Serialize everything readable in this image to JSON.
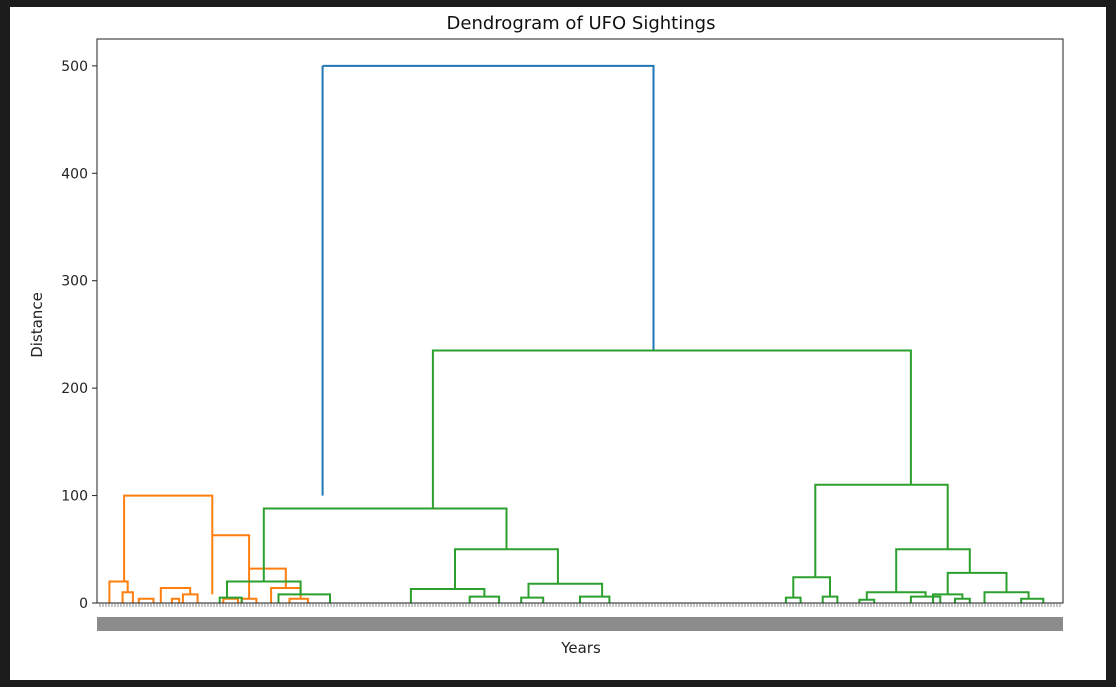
{
  "chart_data": {
    "type": "dendrogram",
    "title": "Dendrogram of UFO Sightings",
    "xlabel": "Years",
    "ylabel": "Distance",
    "ylim": [
      0,
      525
    ],
    "yticks": [
      0,
      100,
      200,
      300,
      400,
      500
    ],
    "colors": {
      "orange": "#ff7f0e",
      "green": "#2ca02c",
      "blue": "#1f77b4"
    },
    "links": [
      {
        "x": [
          30,
          30,
          75,
          75
        ],
        "y": [
          500,
          500,
          500,
          235
        ],
        "color": "blue"
      },
      {
        "x": [
          30,
          30
        ],
        "y": [
          100,
          500
        ],
        "color": "blue"
      },
      {
        "x": [
          3,
          3,
          15,
          15
        ],
        "y": [
          20,
          100,
          100,
          63
        ],
        "color": "orange"
      },
      {
        "x": [
          15,
          15,
          20,
          20
        ],
        "y": [
          8,
          63,
          63,
          32
        ],
        "color": "orange"
      },
      {
        "x": [
          20,
          20,
          25,
          25
        ],
        "y": [
          4,
          32,
          32,
          14
        ],
        "color": "orange"
      },
      {
        "x": [
          1,
          1,
          3.5,
          3.5
        ],
        "y": [
          0,
          20,
          20,
          10
        ],
        "color": "orange"
      },
      {
        "x": [
          2.8,
          2.8,
          4.2,
          4.2
        ],
        "y": [
          0,
          10,
          10,
          0
        ],
        "color": "orange"
      },
      {
        "x": [
          5,
          5,
          7,
          7
        ],
        "y": [
          0,
          4,
          4,
          0
        ],
        "color": "orange"
      },
      {
        "x": [
          8,
          8,
          12,
          12
        ],
        "y": [
          0,
          14,
          14,
          8
        ],
        "color": "orange"
      },
      {
        "x": [
          9.5,
          9.5,
          10.5,
          10.5
        ],
        "y": [
          0,
          4,
          4,
          0
        ],
        "color": "orange"
      },
      {
        "x": [
          11,
          11,
          13,
          13
        ],
        "y": [
          0,
          8,
          8,
          0
        ],
        "color": "orange"
      },
      {
        "x": [
          16.5,
          16.5,
          18.5,
          18.5
        ],
        "y": [
          0,
          4,
          4,
          0
        ],
        "color": "orange"
      },
      {
        "x": [
          19,
          19,
          21,
          21
        ],
        "y": [
          0,
          4,
          4,
          0
        ],
        "color": "orange"
      },
      {
        "x": [
          23,
          23,
          27,
          27
        ],
        "y": [
          0,
          14,
          14,
          4
        ],
        "color": "orange"
      },
      {
        "x": [
          25.5,
          25.5,
          28,
          28
        ],
        "y": [
          0,
          4,
          4,
          0
        ],
        "color": "orange"
      },
      {
        "x": [
          45,
          45,
          110,
          110
        ],
        "y": [
          88,
          235,
          235,
          110
        ],
        "color": "green"
      },
      {
        "x": [
          22,
          22,
          55,
          55
        ],
        "y": [
          20,
          88,
          88,
          50
        ],
        "color": "green"
      },
      {
        "x": [
          17,
          17,
          27,
          27
        ],
        "y": [
          5,
          20,
          20,
          8
        ],
        "color": "green"
      },
      {
        "x": [
          16,
          16,
          19,
          19
        ],
        "y": [
          0,
          5,
          5,
          0
        ],
        "color": "green"
      },
      {
        "x": [
          24,
          24,
          31,
          31
        ],
        "y": [
          0,
          8,
          8,
          0
        ],
        "color": "green"
      },
      {
        "x": [
          48,
          48,
          62,
          62
        ],
        "y": [
          13,
          50,
          50,
          18
        ],
        "color": "green"
      },
      {
        "x": [
          42,
          42,
          52,
          52
        ],
        "y": [
          0,
          13,
          13,
          6
        ],
        "color": "green"
      },
      {
        "x": [
          50,
          50,
          54,
          54
        ],
        "y": [
          0,
          6,
          6,
          0
        ],
        "color": "green"
      },
      {
        "x": [
          58,
          58,
          68,
          68
        ],
        "y": [
          5,
          18,
          18,
          6
        ],
        "color": "green"
      },
      {
        "x": [
          57,
          57,
          60,
          60
        ],
        "y": [
          0,
          5,
          5,
          0
        ],
        "color": "green"
      },
      {
        "x": [
          65,
          65,
          69,
          69
        ],
        "y": [
          0,
          6,
          6,
          0
        ],
        "color": "green"
      },
      {
        "x": [
          97,
          97,
          115,
          115
        ],
        "y": [
          24,
          110,
          110,
          50
        ],
        "color": "green"
      },
      {
        "x": [
          94,
          94,
          99,
          99
        ],
        "y": [
          5,
          24,
          24,
          6
        ],
        "color": "green"
      },
      {
        "x": [
          93,
          93,
          95,
          95
        ],
        "y": [
          0,
          5,
          5,
          0
        ],
        "color": "green"
      },
      {
        "x": [
          98,
          98,
          100,
          100
        ],
        "y": [
          0,
          6,
          6,
          0
        ],
        "color": "green"
      },
      {
        "x": [
          108,
          108,
          118,
          118
        ],
        "y": [
          10,
          50,
          50,
          28
        ],
        "color": "green"
      },
      {
        "x": [
          104,
          104,
          112,
          112
        ],
        "y": [
          3,
          10,
          10,
          6
        ],
        "color": "green"
      },
      {
        "x": [
          103,
          103,
          105,
          105
        ],
        "y": [
          0,
          3,
          3,
          0
        ],
        "color": "green"
      },
      {
        "x": [
          110,
          110,
          114,
          114
        ],
        "y": [
          0,
          6,
          6,
          0
        ],
        "color": "green"
      },
      {
        "x": [
          115,
          115,
          123,
          123
        ],
        "y": [
          8,
          28,
          28,
          10
        ],
        "color": "green"
      },
      {
        "x": [
          113,
          113,
          117,
          117
        ],
        "y": [
          0,
          8,
          8,
          4
        ],
        "color": "green"
      },
      {
        "x": [
          116,
          116,
          118,
          118
        ],
        "y": [
          0,
          4,
          4,
          0
        ],
        "color": "green"
      },
      {
        "x": [
          120,
          120,
          126,
          126
        ],
        "y": [
          0,
          10,
          10,
          4
        ],
        "color": "green"
      },
      {
        "x": [
          125,
          125,
          128,
          128
        ],
        "y": [
          0,
          4,
          4,
          0
        ],
        "color": "green"
      }
    ]
  }
}
